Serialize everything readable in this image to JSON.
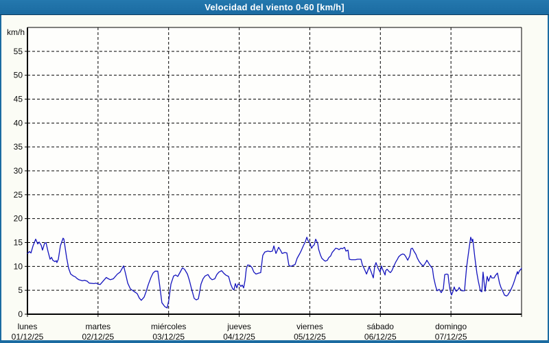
{
  "title_bar": {
    "title": "Velocidad del viento 0-60 [km/h]",
    "bg_color": "#1b6ba1",
    "text_color": "#ffffff"
  },
  "chart_data": {
    "type": "line",
    "title": "Velocidad del viento 0-60 [km/h]",
    "ylabel": "km/h",
    "ylim": [
      0,
      60
    ],
    "y_tick_step": 5,
    "y_tick_labels": [
      "0",
      "5",
      "10",
      "15",
      "20",
      "25",
      "30",
      "35",
      "40",
      "45",
      "50",
      "55"
    ],
    "xlim_hours": [
      0,
      168
    ],
    "hours_per_day": 24,
    "grid": "dashed, horizontal every 5 km/h, vertical at day boundaries",
    "legend": "none",
    "line_color": "#1212bd",
    "x_ticks": [
      {
        "weekday": "lunes",
        "date": "01/12/25"
      },
      {
        "weekday": "martes",
        "date": "02/12/25"
      },
      {
        "weekday": "miércoles",
        "date": "03/12/25"
      },
      {
        "weekday": "jueves",
        "date": "04/12/25"
      },
      {
        "weekday": "viernes",
        "date": "05/12/25"
      },
      {
        "weekday": "sábado",
        "date": "06/12/25"
      },
      {
        "weekday": "domingo",
        "date": "07/12/25"
      }
    ],
    "points_hours_kmh": [
      [
        0,
        12.7
      ],
      [
        0.7,
        13.1
      ],
      [
        1.2,
        12.8
      ],
      [
        1.9,
        14.3
      ],
      [
        2.8,
        15.7
      ],
      [
        3.5,
        14.7
      ],
      [
        4,
        15.1
      ],
      [
        4.7,
        14.4
      ],
      [
        5.1,
        13.4
      ],
      [
        5.8,
        14.8
      ],
      [
        6.3,
        15
      ],
      [
        7,
        13.1
      ],
      [
        7.7,
        11.5
      ],
      [
        8.2,
        11.9
      ],
      [
        8.6,
        11.3
      ],
      [
        9.3,
        11
      ],
      [
        9.8,
        11.2
      ],
      [
        10,
        10.8
      ],
      [
        10.5,
        11.5
      ],
      [
        11.2,
        14.3
      ],
      [
        12.1,
        15.9
      ],
      [
        12.4,
        15.7
      ],
      [
        13.3,
        11.9
      ],
      [
        14,
        9.6
      ],
      [
        14.7,
        8.4
      ],
      [
        15.6,
        8
      ],
      [
        16.3,
        7.8
      ],
      [
        16.8,
        7.5
      ],
      [
        17.5,
        7.2
      ],
      [
        18.7,
        7
      ],
      [
        19.4,
        7.1
      ],
      [
        20.3,
        6.9
      ],
      [
        21,
        6.5
      ],
      [
        22.6,
        6.4
      ],
      [
        23.3,
        6.5
      ],
      [
        24,
        6.3
      ],
      [
        24.7,
        6.2
      ],
      [
        25.7,
        6.9
      ],
      [
        26.8,
        7.7
      ],
      [
        27.5,
        7.4
      ],
      [
        28.2,
        7.2
      ],
      [
        29.2,
        7.4
      ],
      [
        30.6,
        8.4
      ],
      [
        31.5,
        8.8
      ],
      [
        32.7,
        10.1
      ],
      [
        33.4,
        8.4
      ],
      [
        34.1,
        6.5
      ],
      [
        35,
        5.3
      ],
      [
        36.4,
        4.7
      ],
      [
        37.3,
        4.3
      ],
      [
        38,
        3.4
      ],
      [
        38.7,
        2.9
      ],
      [
        39.7,
        3.6
      ],
      [
        40.4,
        4.8
      ],
      [
        41.1,
        6.2
      ],
      [
        42,
        7.7
      ],
      [
        42.7,
        8.6
      ],
      [
        43.4,
        9
      ],
      [
        44.3,
        9
      ],
      [
        45,
        5.8
      ],
      [
        45.7,
        2.4
      ],
      [
        46.7,
        1.6
      ],
      [
        47.5,
        1.3
      ],
      [
        48.1,
        3
      ],
      [
        48.8,
        6.3
      ],
      [
        49.7,
        8
      ],
      [
        50.4,
        8.2
      ],
      [
        51.1,
        7.9
      ],
      [
        52,
        8.9
      ],
      [
        52.7,
        9.7
      ],
      [
        53.4,
        9.4
      ],
      [
        54.4,
        8.4
      ],
      [
        55.1,
        7
      ],
      [
        55.8,
        5.3
      ],
      [
        56.7,
        3.3
      ],
      [
        57.4,
        3
      ],
      [
        58.1,
        3.2
      ],
      [
        58.6,
        4.8
      ],
      [
        59,
        6.3
      ],
      [
        59.7,
        7.4
      ],
      [
        60.4,
        8
      ],
      [
        61.4,
        8.3
      ],
      [
        62.1,
        7.6
      ],
      [
        62.8,
        7.2
      ],
      [
        63.7,
        7.4
      ],
      [
        64.4,
        8.3
      ],
      [
        65.1,
        8.8
      ],
      [
        66,
        9.1
      ],
      [
        66.7,
        8.6
      ],
      [
        67.4,
        8.2
      ],
      [
        68.4,
        7.9
      ],
      [
        69.1,
        6.3
      ],
      [
        69.8,
        5.3
      ],
      [
        70.2,
        5.1
      ],
      [
        70.7,
        6.4
      ],
      [
        71.2,
        5.5
      ],
      [
        71.6,
        6.3
      ],
      [
        72.1,
        6.2
      ],
      [
        72.6,
        5.8
      ],
      [
        73,
        6.1
      ],
      [
        73.5,
        5.5
      ],
      [
        74,
        7.1
      ],
      [
        74.4,
        9.5
      ],
      [
        74.9,
        10.3
      ],
      [
        75.6,
        10.2
      ],
      [
        76.3,
        9.8
      ],
      [
        77,
        8.8
      ],
      [
        77.7,
        8.4
      ],
      [
        78.6,
        8.6
      ],
      [
        79.3,
        8.7
      ],
      [
        80,
        12.3
      ],
      [
        80.7,
        13
      ],
      [
        81.7,
        13.2
      ],
      [
        82.6,
        13.1
      ],
      [
        83.3,
        13.2
      ],
      [
        83.8,
        14.3
      ],
      [
        84.5,
        12.7
      ],
      [
        85.4,
        14
      ],
      [
        86.1,
        13.3
      ],
      [
        86.6,
        12.7
      ],
      [
        87.5,
        12.9
      ],
      [
        88.2,
        12.8
      ],
      [
        88.9,
        10.2
      ],
      [
        89.6,
        10
      ],
      [
        90.3,
        10.2
      ],
      [
        91,
        10.4
      ],
      [
        91.7,
        11.7
      ],
      [
        92.6,
        12.7
      ],
      [
        93.1,
        13.3
      ],
      [
        93.8,
        14.3
      ],
      [
        94.5,
        15.2
      ],
      [
        95,
        16.1
      ],
      [
        95.4,
        15.4
      ],
      [
        96.1,
        14.8
      ],
      [
        96.6,
        13.8
      ],
      [
        97.1,
        14.3
      ],
      [
        97.5,
        14.5
      ],
      [
        98,
        15.7
      ],
      [
        98.7,
        14.8
      ],
      [
        99,
        13.6
      ],
      [
        99.6,
        12.4
      ],
      [
        100.1,
        11.7
      ],
      [
        100.8,
        11.3
      ],
      [
        101.3,
        11.1
      ],
      [
        102,
        11.3
      ],
      [
        102.4,
        11.8
      ],
      [
        103.1,
        12.2
      ],
      [
        103.6,
        12.9
      ],
      [
        104.3,
        13.4
      ],
      [
        104.8,
        13.8
      ],
      [
        105.5,
        13.7
      ],
      [
        105.9,
        13.5
      ],
      [
        106.6,
        13.8
      ],
      [
        107.1,
        13.7
      ],
      [
        107.8,
        14
      ],
      [
        108.3,
        13.2
      ],
      [
        109,
        13.4
      ],
      [
        109.4,
        11.5
      ],
      [
        110.1,
        11.4
      ],
      [
        111.5,
        11.4
      ],
      [
        112.2,
        11.5
      ],
      [
        113.4,
        11.5
      ],
      [
        113.9,
        10.3
      ],
      [
        114.6,
        9.4
      ],
      [
        115.3,
        8.4
      ],
      [
        115.7,
        9.1
      ],
      [
        116.2,
        9.9
      ],
      [
        116.9,
        8.8
      ],
      [
        117.6,
        7.6
      ],
      [
        118.1,
        10.1
      ],
      [
        118.5,
        10.8
      ],
      [
        119.2,
        9.6
      ],
      [
        119.9,
        8.8
      ],
      [
        120.4,
        10.1
      ],
      [
        120.6,
        9.6
      ],
      [
        121.1,
        8.9
      ],
      [
        121.6,
        8.2
      ],
      [
        121.8,
        9.1
      ],
      [
        122.3,
        9.4
      ],
      [
        123,
        8.9
      ],
      [
        123.4,
        8.7
      ],
      [
        123.9,
        9.1
      ],
      [
        124.6,
        10.1
      ],
      [
        125.3,
        11
      ],
      [
        125.8,
        11.5
      ],
      [
        126.2,
        12
      ],
      [
        126.9,
        12.4
      ],
      [
        127.6,
        12.6
      ],
      [
        128.1,
        12.5
      ],
      [
        128.6,
        12.1
      ],
      [
        129.3,
        11.3
      ],
      [
        130,
        12.2
      ],
      [
        130.4,
        13.7
      ],
      [
        130.9,
        13.8
      ],
      [
        131.4,
        13.2
      ],
      [
        132.1,
        12.5
      ],
      [
        132.5,
        11.8
      ],
      [
        133.2,
        11
      ],
      [
        133.7,
        10.6
      ],
      [
        134.4,
        10.1
      ],
      [
        134.9,
        10.3
      ],
      [
        135.6,
        11
      ],
      [
        135.8,
        11.3
      ],
      [
        136.5,
        10.6
      ],
      [
        137,
        10.1
      ],
      [
        137.7,
        9.6
      ],
      [
        138.1,
        7.7
      ],
      [
        138.8,
        5.8
      ],
      [
        139.3,
        4.9
      ],
      [
        140,
        5.2
      ],
      [
        140.7,
        4.5
      ],
      [
        141.4,
        5.3
      ],
      [
        141.9,
        8.3
      ],
      [
        142.6,
        8.4
      ],
      [
        143,
        8.3
      ],
      [
        143.3,
        6.7
      ],
      [
        143.7,
        5
      ],
      [
        144,
        4.4
      ],
      [
        144.2,
        4
      ],
      [
        144.7,
        4.8
      ],
      [
        145.1,
        5.7
      ],
      [
        145.4,
        5.2
      ],
      [
        145.8,
        4.8
      ],
      [
        146.5,
        5.2
      ],
      [
        146.8,
        5.6
      ],
      [
        147.2,
        5.2
      ],
      [
        147.7,
        4.9
      ],
      [
        148.6,
        4.9
      ],
      [
        148.9,
        6.9
      ],
      [
        149.3,
        9.8
      ],
      [
        149.8,
        12.1
      ],
      [
        150.3,
        14.3
      ],
      [
        150.7,
        16.1
      ],
      [
        151.2,
        15.2
      ],
      [
        151.4,
        15.7
      ],
      [
        152.1,
        11.9
      ],
      [
        152.8,
        8.6
      ],
      [
        153.3,
        6.9
      ],
      [
        154,
        4.9
      ],
      [
        154.5,
        4.7
      ],
      [
        154.9,
        8.8
      ],
      [
        155.4,
        6
      ],
      [
        155.6,
        4.8
      ],
      [
        156.3,
        7.9
      ],
      [
        156.8,
        6.9
      ],
      [
        157.5,
        8.1
      ],
      [
        157.9,
        7.6
      ],
      [
        158.7,
        7.6
      ],
      [
        159.1,
        8.1
      ],
      [
        159.8,
        8.6
      ],
      [
        160.5,
        6.5
      ],
      [
        161,
        5.6
      ],
      [
        161.7,
        4.7
      ],
      [
        162.2,
        4
      ],
      [
        162.9,
        3.8
      ],
      [
        163.3,
        4
      ],
      [
        164,
        4.7
      ],
      [
        164.5,
        5.3
      ],
      [
        165.2,
        6.3
      ],
      [
        165.7,
        7.2
      ],
      [
        166.2,
        8.2
      ],
      [
        166.6,
        8.9
      ],
      [
        166.8,
        8.4
      ],
      [
        167.3,
        9.1
      ],
      [
        167.8,
        9.4
      ],
      [
        168,
        9.6
      ]
    ]
  }
}
